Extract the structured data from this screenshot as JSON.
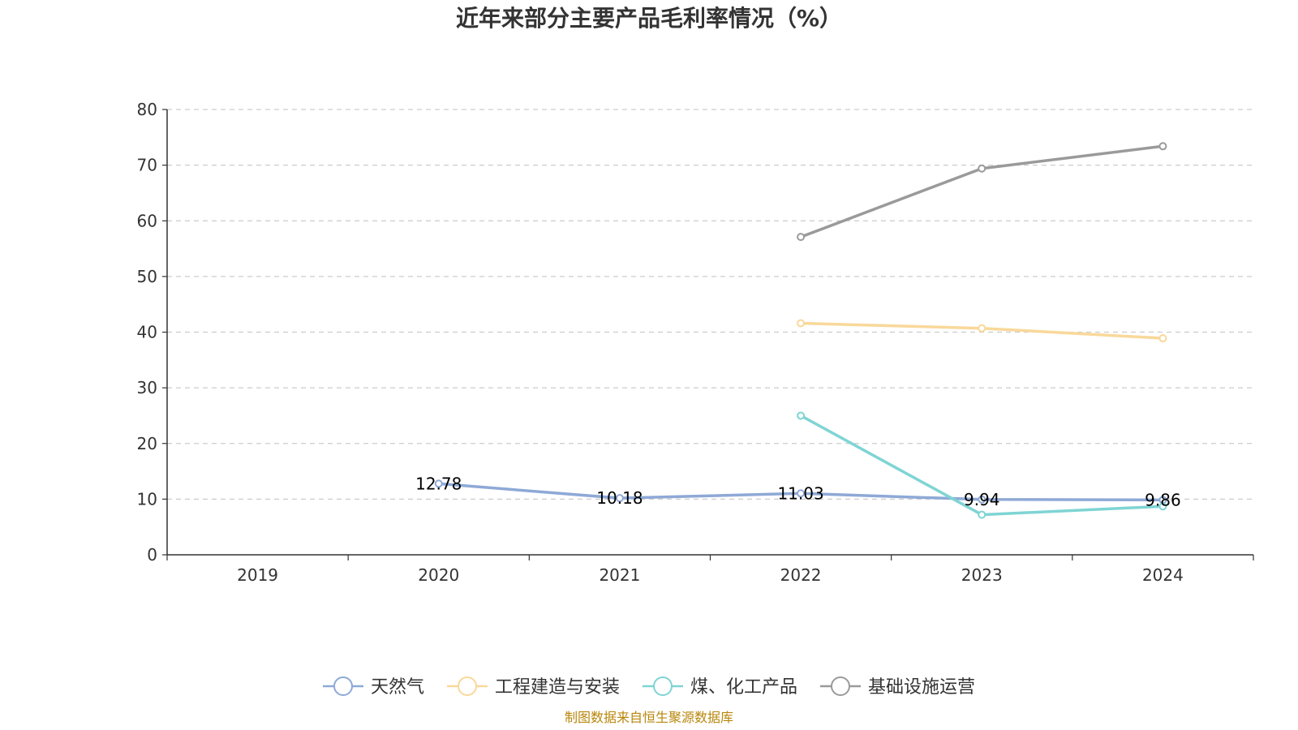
{
  "chart_data": {
    "type": "line",
    "title": "近年来部分主要产品毛利率情况（%）",
    "categories": [
      "2019",
      "2020",
      "2021",
      "2022",
      "2023",
      "2024"
    ],
    "ylim": [
      0,
      80
    ],
    "yticks": [
      "0",
      "10",
      "20",
      "30",
      "40",
      "50",
      "60",
      "70",
      "80"
    ],
    "grid": true,
    "legend_position": "bottom",
    "series": [
      {
        "name": "天然气",
        "color": "#8ea9d6",
        "values": [
          null,
          12.78,
          10.18,
          11.03,
          9.94,
          9.86
        ],
        "labels": [
          null,
          "12.78",
          "10.18",
          "11.03",
          "9.94",
          "9.86"
        ]
      },
      {
        "name": "工程建造与安装",
        "color": "#f9d89a",
        "values": [
          null,
          null,
          null,
          41.6,
          40.7,
          38.9
        ],
        "labels": [
          null,
          null,
          null,
          null,
          null,
          null
        ]
      },
      {
        "name": "煤、化工产品",
        "color": "#7fd4d4",
        "values": [
          null,
          null,
          null,
          25.0,
          7.2,
          8.7
        ],
        "labels": [
          null,
          null,
          null,
          null,
          null,
          null
        ]
      },
      {
        "name": "基础设施运营",
        "color": "#9a9a9a",
        "values": [
          null,
          null,
          null,
          57.1,
          69.4,
          73.4
        ],
        "labels": [
          null,
          null,
          null,
          null,
          null,
          null
        ]
      }
    ]
  },
  "source": "制图数据来自恒生聚源数据库"
}
